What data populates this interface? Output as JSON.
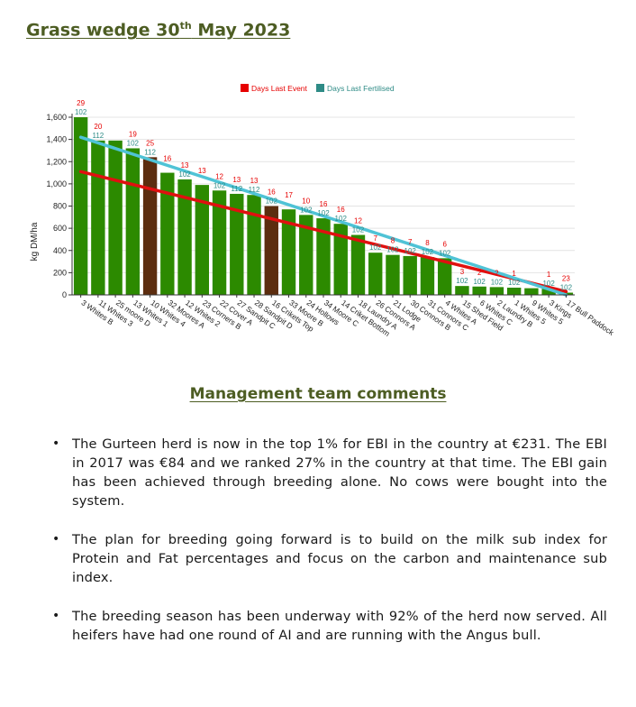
{
  "document": {
    "title_main": "Grass wedge 30",
    "title_sup": "th",
    "title_end": " May 2023",
    "comments_title": "Management team comments",
    "comments": [
      "The Gurteen herd is now in the top 1% for EBI in the country at €231. The EBI in 2017 was €84 and we ranked 27% in the country at that time. The EBI gain has been achieved through breeding alone. No cows were bought into the system.",
      "The plan for breeding going forward is to build on the milk sub index for Protein and Fat percentages and focus on the carbon and maintenance sub index.",
      "The breeding season has been underway with 92% of the herd now served. All heifers have had one round of AI and are running with the Angus bull."
    ]
  },
  "chart_data": {
    "type": "bar",
    "title": "",
    "ylabel": "kg DM/ha",
    "xlabel": "",
    "ylim": [
      0,
      1600
    ],
    "yticks": [
      0,
      200,
      400,
      600,
      800,
      1000,
      1200,
      1400,
      1600
    ],
    "ytick_labels": [
      "0",
      "200",
      "400",
      "600",
      "800",
      "1,000",
      "1,200",
      "1,400",
      "1,600"
    ],
    "grid": true,
    "legend_position": "top",
    "categories": [
      "3 Whites B",
      "11 Whites 3",
      "25 moore D",
      "13 Whites 1",
      "10 Whites 4",
      "32 Moores A",
      "12 Whites 2",
      "23 Corners B",
      "22 Cover A",
      "27 Sandpit C",
      "28 Sandpit D",
      "16 Crikets Top",
      "33 Moore B",
      "24 Hollows",
      "34 Moore C",
      "14 Criket Bottom",
      "18 Laundry A",
      "26 Connors A",
      "21 Lodge",
      "30 Connors B",
      "31 Connors C",
      "4 Whites A",
      "15 Shed Field",
      "6 Whites C",
      "2 Laundry B",
      "1 Whites 5",
      "9 Whites 5",
      "3 Kings",
      "17 Bull Paddock"
    ],
    "values": [
      1600,
      1390,
      1390,
      1320,
      1240,
      1100,
      1040,
      990,
      940,
      910,
      900,
      800,
      770,
      720,
      690,
      640,
      540,
      380,
      360,
      350,
      340,
      330,
      80,
      75,
      70,
      65,
      60,
      55,
      20
    ],
    "bar_colors": [
      "#2c8a00",
      "#2c8a00",
      "#2c8a00",
      "#2c8a00",
      "#5c2d0f",
      "#2c8a00",
      "#2c8a00",
      "#2c8a00",
      "#2c8a00",
      "#2c8a00",
      "#2c8a00",
      "#5c2d0f",
      "#2c8a00",
      "#2c8a00",
      "#2c8a00",
      "#2c8a00",
      "#2c8a00",
      "#2c8a00",
      "#2c8a00",
      "#2c8a00",
      "#2c8a00",
      "#2c8a00",
      "#2c8a00",
      "#2c8a00",
      "#2c8a00",
      "#2c8a00",
      "#2c8a00",
      "#2c8a00",
      "#2c8a00"
    ],
    "series": [
      {
        "name": "Days Last Event",
        "color": "#e60000",
        "labels": [
          "29",
          "20",
          "",
          "19",
          "25",
          "16",
          "13",
          "13",
          "12",
          "13",
          "13",
          "16",
          "17",
          "10",
          "16",
          "16",
          "12",
          "7",
          "8",
          "7",
          "8",
          "6",
          "3",
          "2",
          "2",
          "1",
          "",
          "1",
          "23"
        ]
      },
      {
        "name": "Days Last Fertilised",
        "color": "#2e8b86",
        "labels": [
          "102",
          "112",
          "",
          "102",
          "112",
          "",
          "102",
          "",
          "102",
          "112",
          "112",
          "102",
          "",
          "102",
          "102",
          "102",
          "102",
          "102",
          "102",
          "102",
          "102",
          "102",
          "102",
          "102",
          "102",
          "102",
          "",
          "102",
          "102"
        ]
      }
    ],
    "trend_lines": [
      {
        "color": "#e01010",
        "start": 1110,
        "end": 30
      },
      {
        "color": "#4fc3d6",
        "start": 1420,
        "end": 0
      }
    ]
  }
}
